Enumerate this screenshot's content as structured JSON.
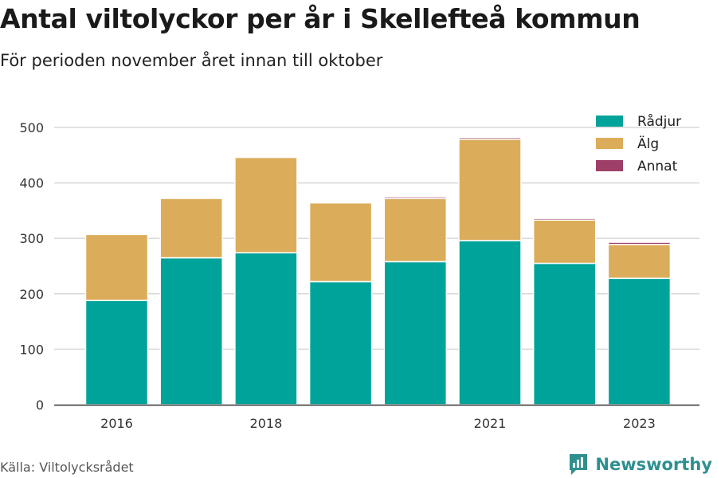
{
  "header": {
    "title": "Antal viltolyckor per år i Skellefteå kommun",
    "subtitle": "För perioden november året innan till oktober"
  },
  "footer": {
    "source": "Källa: Viltolycksrådet",
    "brand": "Newsworthy"
  },
  "colors": {
    "radjur": "#00a39a",
    "alg": "#dbad5b",
    "annat": "#9e3f68"
  },
  "chart_data": {
    "type": "bar",
    "stacked": true,
    "categories": [
      2016,
      2017,
      2018,
      2019,
      2020,
      2021,
      2022,
      2023
    ],
    "x_tick_labels": [
      "2016",
      "2018",
      "2021",
      "2023"
    ],
    "y_ticks": [
      0,
      100,
      200,
      300,
      400,
      500
    ],
    "ylim": [
      0,
      500
    ],
    "grid": true,
    "legend_position": "top-right",
    "series": [
      {
        "name": "Rådjur",
        "color": "#00a39a",
        "values": [
          188,
          265,
          274,
          222,
          258,
          296,
          255,
          228
        ]
      },
      {
        "name": "Älg",
        "color": "#dbad5b",
        "values": [
          119,
          107,
          172,
          142,
          114,
          183,
          78,
          61
        ]
      },
      {
        "name": "Annat",
        "color": "#9e3f68",
        "values": [
          0,
          0,
          0,
          0,
          3,
          3,
          3,
          4
        ]
      }
    ]
  }
}
